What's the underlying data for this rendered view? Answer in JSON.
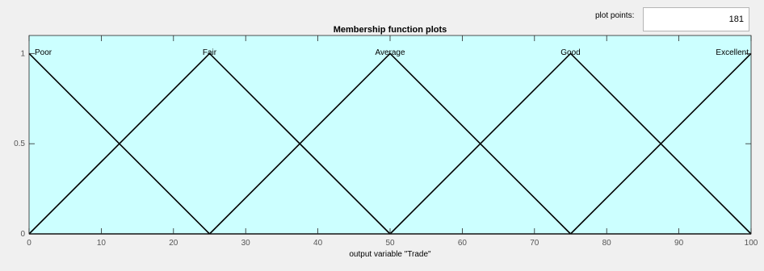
{
  "controls": {
    "plot_points_label": "plot points:",
    "plot_points_value": "181"
  },
  "chart_data": {
    "type": "line",
    "title": "Membership function plots",
    "xlabel": "output variable \"Trade\"",
    "ylabel": "",
    "xlim": [
      0,
      100
    ],
    "ylim": [
      0,
      1.1
    ],
    "x_ticks": [
      0,
      10,
      20,
      30,
      40,
      50,
      60,
      70,
      80,
      90,
      100
    ],
    "y_ticks": [
      0,
      0.5,
      1
    ],
    "y_tick_labels": [
      "0",
      "0.5",
      "1"
    ],
    "background_color": "#ccffff",
    "line_color": "#000000",
    "series": [
      {
        "name": "Poor",
        "x": [
          0,
          25
        ],
        "y": [
          1,
          0
        ]
      },
      {
        "name": "Fair",
        "x": [
          0,
          25,
          50
        ],
        "y": [
          0,
          1,
          0
        ]
      },
      {
        "name": "Average",
        "x": [
          25,
          50,
          75
        ],
        "y": [
          0,
          1,
          0
        ]
      },
      {
        "name": "Good",
        "x": [
          50,
          75,
          100
        ],
        "y": [
          0,
          1,
          0
        ]
      },
      {
        "name": "Excellent",
        "x": [
          75,
          100
        ],
        "y": [
          0,
          1
        ]
      }
    ],
    "baseline": {
      "x": [
        0,
        100
      ],
      "y": [
        0,
        0
      ]
    }
  }
}
